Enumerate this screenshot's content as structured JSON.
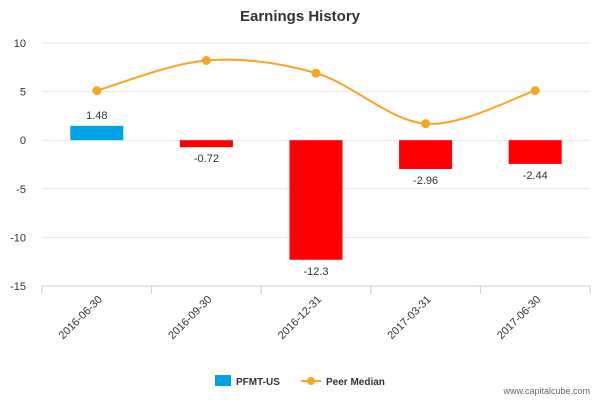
{
  "chart_data": {
    "type": "bar",
    "title": "Earnings History",
    "xlabel": "",
    "ylabel": "",
    "ylim": [
      -15,
      10
    ],
    "yticks": [
      10,
      5,
      0,
      -5,
      -10,
      -15
    ],
    "categories": [
      "2016-06-30",
      "2016-09-30",
      "2016-12-31",
      "2017-03-31",
      "2017-06-30"
    ],
    "series": [
      {
        "name": "PFMT-US",
        "kind": "bar",
        "values": [
          1.48,
          -0.72,
          -12.3,
          -2.96,
          -2.44
        ],
        "labels": [
          "1.48",
          "-0.72",
          "-12.3",
          "-2.96",
          "-2.44"
        ],
        "color_positive": "#00a2e8",
        "color_negative": "#ff0000"
      },
      {
        "name": "Peer Median",
        "kind": "line",
        "values": [
          5.1,
          8.2,
          6.9,
          1.7,
          5.1
        ],
        "color": "#f5a623"
      }
    ],
    "legend_position": "bottom-center"
  },
  "credit": "www.capitalcube.com"
}
